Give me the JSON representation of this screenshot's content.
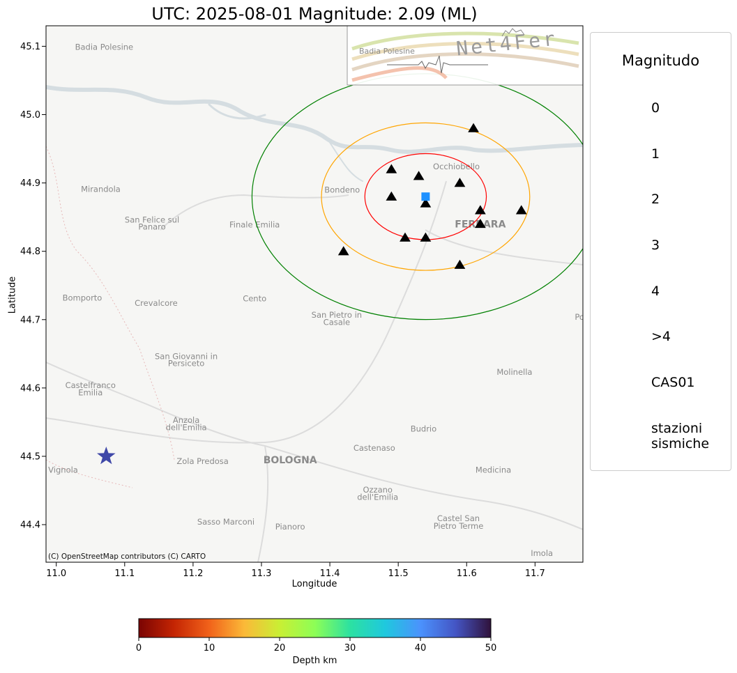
{
  "title": "UTC: 2025-08-01 Magnitude: 2.09 (ML)",
  "colors": {
    "land": "#f6f6f4",
    "water": "#d5dde1",
    "radius_inner": "#ff0000",
    "radius_middle": "#ffa500",
    "radius_outer": "#008000",
    "station": "#000000",
    "site": "#1e90ff",
    "epicenter": "#3f48a8",
    "legend_star": "#ff0000"
  },
  "map": {
    "attribution": "(C) OpenStreetMap contributors (C) CARTO",
    "xlabel": "Longitude",
    "ylabel": "Latitude",
    "xlim": [
      10.985,
      11.77
    ],
    "ylim": [
      44.345,
      45.13
    ],
    "xticks": [
      "11.0",
      "11.1",
      "11.2",
      "11.3",
      "11.4",
      "11.5",
      "11.6",
      "11.7"
    ],
    "yticks": [
      "44.4",
      "44.5",
      "44.6",
      "44.7",
      "44.8",
      "44.9",
      "45.0",
      "45.1"
    ],
    "places": [
      {
        "name": "Mirandola",
        "lon": 11.065,
        "lat": 44.887
      },
      {
        "name": "San Felice sul",
        "lon": 11.14,
        "lat": 44.842
      },
      {
        "name": "Panaro",
        "lon": 11.14,
        "lat": 44.832
      },
      {
        "name": "Finale Emilia",
        "lon": 11.29,
        "lat": 44.835
      },
      {
        "name": "Bondeno",
        "lon": 11.418,
        "lat": 44.886
      },
      {
        "name": "Occhiobello",
        "lon": 11.585,
        "lat": 44.92
      },
      {
        "name": "FERRARA",
        "lon": 11.62,
        "lat": 44.835
      },
      {
        "name": "Bomporto",
        "lon": 11.038,
        "lat": 44.728
      },
      {
        "name": "Crevalcore",
        "lon": 11.146,
        "lat": 44.72
      },
      {
        "name": "Cento",
        "lon": 11.29,
        "lat": 44.727
      },
      {
        "name": "San Pietro in",
        "lon": 11.41,
        "lat": 44.703
      },
      {
        "name": "Casale",
        "lon": 11.41,
        "lat": 44.692
      },
      {
        "name": "San Giovanni in",
        "lon": 11.19,
        "lat": 44.642
      },
      {
        "name": "Persiceto",
        "lon": 11.19,
        "lat": 44.632
      },
      {
        "name": "Castelfranco",
        "lon": 11.05,
        "lat": 44.6
      },
      {
        "name": "Emilia",
        "lon": 11.05,
        "lat": 44.589
      },
      {
        "name": "Molinella",
        "lon": 11.67,
        "lat": 44.619
      },
      {
        "name": "Anzola",
        "lon": 11.19,
        "lat": 44.549
      },
      {
        "name": "dell'Emilia",
        "lon": 11.19,
        "lat": 44.538
      },
      {
        "name": "Budrio",
        "lon": 11.537,
        "lat": 44.536
      },
      {
        "name": "Zola Predosa",
        "lon": 11.214,
        "lat": 44.489
      },
      {
        "name": "BOLOGNA",
        "lon": 11.342,
        "lat": 44.49
      },
      {
        "name": "Castenaso",
        "lon": 11.465,
        "lat": 44.508
      },
      {
        "name": "Medicina",
        "lon": 11.639,
        "lat": 44.476
      },
      {
        "name": "Vignola",
        "lon": 11.01,
        "lat": 44.476
      },
      {
        "name": "Ozzano",
        "lon": 11.47,
        "lat": 44.447
      },
      {
        "name": "dell'Emilia",
        "lon": 11.47,
        "lat": 44.436
      },
      {
        "name": "Castel San",
        "lon": 11.588,
        "lat": 44.405
      },
      {
        "name": "Pietro Terme",
        "lon": 11.588,
        "lat": 44.394
      },
      {
        "name": "Sasso Marconi",
        "lon": 11.248,
        "lat": 44.4
      },
      {
        "name": "Pianoro",
        "lon": 11.342,
        "lat": 44.393
      },
      {
        "name": "Imola",
        "lon": 11.71,
        "lat": 44.354
      },
      {
        "name": "Po",
        "lon": 11.765,
        "lat": 44.7
      },
      {
        "name": "Badia Polesine",
        "lon": 11.07,
        "lat": 45.095
      }
    ],
    "site": {
      "name": "CAS01",
      "lon": 11.54,
      "lat": 44.88
    },
    "circles_km": [
      {
        "radius": 7,
        "color": "#ff0000"
      },
      {
        "radius": 12,
        "color": "#ffa500"
      },
      {
        "radius": 20,
        "color": "#008000"
      }
    ],
    "stations": [
      {
        "lon": 11.61,
        "lat": 44.98
      },
      {
        "lon": 11.49,
        "lat": 44.92
      },
      {
        "lon": 11.53,
        "lat": 44.91
      },
      {
        "lon": 11.59,
        "lat": 44.9
      },
      {
        "lon": 11.49,
        "lat": 44.88
      },
      {
        "lon": 11.54,
        "lat": 44.87
      },
      {
        "lon": 11.62,
        "lat": 44.86
      },
      {
        "lon": 11.68,
        "lat": 44.86
      },
      {
        "lon": 11.62,
        "lat": 44.84
      },
      {
        "lon": 11.51,
        "lat": 44.82
      },
      {
        "lon": 11.54,
        "lat": 44.82
      },
      {
        "lon": 11.42,
        "lat": 44.8
      },
      {
        "lon": 11.59,
        "lat": 44.78
      }
    ],
    "epicenter": {
      "lon": 11.073,
      "lat": 44.5,
      "magnitude": 2.09,
      "depth_km": 43
    }
  },
  "logo": {
    "text": "Net4Fer",
    "subtext": "Badia Polesine"
  },
  "legend": {
    "title": "Magnitudo",
    "items": [
      {
        "label": "0",
        "kind": "star",
        "magnitude": 0
      },
      {
        "label": "1",
        "kind": "star",
        "magnitude": 1
      },
      {
        "label": "2",
        "kind": "star",
        "magnitude": 2
      },
      {
        "label": "3",
        "kind": "star",
        "magnitude": 3
      },
      {
        "label": "4",
        "kind": "star",
        "magnitude": 4
      },
      {
        "label": ">4",
        "kind": "star-outline",
        "magnitude": 5
      },
      {
        "label": "CAS01",
        "kind": "square"
      },
      {
        "label": "stazioni\nsismiche",
        "kind": "triangle"
      }
    ]
  },
  "colorbar": {
    "label": "Depth km",
    "ticks": [
      "0",
      "10",
      "20",
      "30",
      "40",
      "50"
    ],
    "range": [
      0,
      50
    ]
  }
}
